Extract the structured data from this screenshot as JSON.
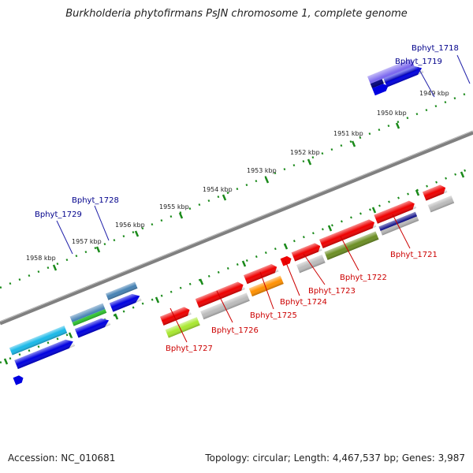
{
  "title": "Burkholderia phytofirmans PsJN chromosome 1, complete genome",
  "footer": {
    "accession": "Accession: NC_010681",
    "topology": "Topology: circular; Length: 4,467,537 bp; Genes: 3,987"
  },
  "kbp_labels": [
    "1958 kbp",
    "1957 kbp",
    "1956 kbp",
    "1955 kbp",
    "1954 kbp",
    "1953 kbp",
    "1952 kbp",
    "1951 kbp",
    "1950 kbp",
    "1949 kbp"
  ],
  "colors": {
    "top_labels": "#00008b",
    "bottom_labels": "#cc0000",
    "ticks": "#1a8a1a",
    "backbone": "#808080"
  },
  "genes_outer": [
    {
      "name": "cyan",
      "color": "#19b8e8"
    },
    {
      "name": "steel-1",
      "color": "#4682b4"
    },
    {
      "name": "green",
      "color": "#32cd32"
    },
    {
      "name": "steel-2",
      "color": "#4682b4"
    },
    {
      "name": "purple",
      "color": "#7b68ee"
    },
    {
      "name": "navy",
      "color": "#000080"
    }
  ],
  "genes_outer_strand2": [
    {
      "name": "blue-1",
      "color": "#0000e0"
    },
    {
      "name": "blue-2",
      "color": "#0000e0"
    },
    {
      "name": "blue-3",
      "color": "#0000e0"
    },
    {
      "name": "blue-4",
      "color": "#0000e0"
    },
    {
      "name": "blue-5",
      "color": "#0000e0"
    },
    {
      "name": "blue-6",
      "color": "#0000e0"
    }
  ],
  "genes_inner": [
    {
      "name": "red-1",
      "color": "#ee0000"
    },
    {
      "name": "red-2",
      "color": "#ee0000"
    },
    {
      "name": "red-3",
      "color": "#ee0000"
    },
    {
      "name": "red-4",
      "color": "#ee0000"
    },
    {
      "name": "red-5",
      "color": "#ee0000"
    },
    {
      "name": "red-6",
      "color": "#ee0000"
    },
    {
      "name": "red-7",
      "color": "#ee0000"
    },
    {
      "name": "red-8",
      "color": "#ee0000"
    },
    {
      "name": "lime",
      "color": "#a8e830"
    },
    {
      "name": "grey-1",
      "color": "#bbbbbb"
    },
    {
      "name": "orange",
      "color": "#ff9000"
    },
    {
      "name": "grey-2",
      "color": "#bbbbbb"
    },
    {
      "name": "olive",
      "color": "#6b8e23"
    },
    {
      "name": "navy-2",
      "color": "#000080"
    },
    {
      "name": "grey-3",
      "color": "#bbbbbb"
    }
  ],
  "top_gene_labels": [
    "Bphyt_1729",
    "Bphyt_1728",
    "Bphyt_1719",
    "Bphyt_1718"
  ],
  "bottom_gene_labels": [
    "Bphyt_1727",
    "Bphyt_1726",
    "Bphyt_1725",
    "Bphyt_1724",
    "Bphyt_1723",
    "Bphyt_1722",
    "Bphyt_1721"
  ]
}
